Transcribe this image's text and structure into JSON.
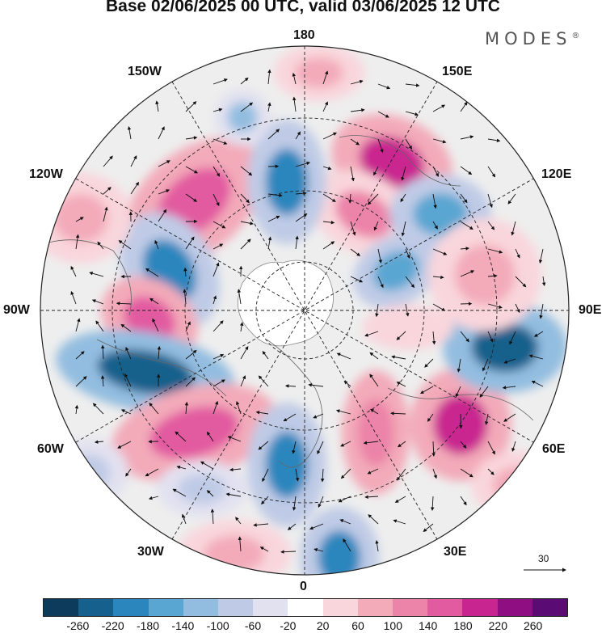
{
  "title": "Base 02/06/2025 00 UTC, valid 03/06/2025 12 UTC",
  "brand": {
    "name": "MODES",
    "mark": "®"
  },
  "longitude_labels": {
    "top": "180",
    "bottom": "0",
    "left": "90W",
    "right": "90E",
    "upper_left_1": "150W",
    "upper_left_2": "120W",
    "upper_right_1": "150E",
    "upper_right_2": "120E",
    "lower_left_1": "60W",
    "lower_left_2": "30W",
    "lower_right_1": "60E",
    "lower_right_2": "30E"
  },
  "vector_scale": {
    "value": "30"
  },
  "colorbar": {
    "colors": [
      "#0d3b5c",
      "#15608c",
      "#2a86bd",
      "#5aa6d2",
      "#93bde0",
      "#bfcbe6",
      "#e2e1f0",
      "#ffffff",
      "#f9d6dc",
      "#f3aab9",
      "#ec83a8",
      "#e25aa0",
      "#c92590",
      "#8f0e82",
      "#5a0b74"
    ],
    "ticks": [
      "-260",
      "-220",
      "-180",
      "-140",
      "-100",
      "-60",
      "-20",
      "20",
      "60",
      "100",
      "140",
      "180",
      "220",
      "260"
    ]
  }
}
